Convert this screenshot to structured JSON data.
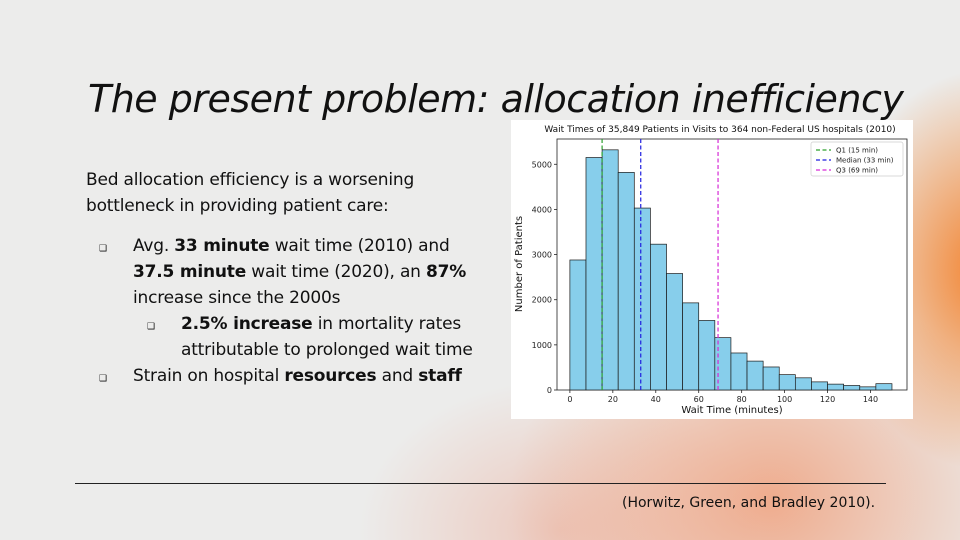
{
  "slide": {
    "title": "The present problem: allocation inefficiency",
    "intro": "Bed allocation efficiency is a worsening bottleneck in providing patient care:",
    "bullet1": {
      "p1": "Avg. ",
      "b1": "33 minute",
      "p2": " wait time (2010) and ",
      "b2": "37.5 minute",
      "p3": " wait time (2020), an ",
      "b3": "87%",
      "p4": " increase since the 2000s"
    },
    "bullet1_sub": {
      "b1": "2.5% increase",
      "p1": " in mortality rates attributable to prolonged wait time"
    },
    "bullet2": {
      "p1": "Strain on hospital ",
      "b1": "resources",
      "p2": " and ",
      "b2": "staff"
    },
    "citation": "(Horwitz, Green, and Bradley 2010).",
    "bullet_marker": "❑"
  },
  "chart_data": {
    "type": "histogram",
    "title": "Wait Times of 35,849 Patients in Visits to 364 non-Federal US hospitals (2010)",
    "xlabel": "Wait Time (minutes)",
    "ylabel": "Number of Patients",
    "bin_width": 7.5,
    "bin_start": 0,
    "values": [
      2880,
      5150,
      5320,
      4820,
      4030,
      3230,
      2580,
      1930,
      1540,
      1160,
      820,
      640,
      510,
      340,
      270,
      180,
      130,
      100,
      70,
      140
    ],
    "xlim": [
      -6,
      157
    ],
    "ylim": [
      0,
      5560
    ],
    "xticks": [
      0,
      20,
      40,
      60,
      80,
      100,
      120,
      140
    ],
    "yticks": [
      0,
      1000,
      2000,
      3000,
      4000,
      5000
    ],
    "bar_color": "#87ceeb",
    "lines": [
      {
        "x": 15,
        "label": "Q1 (15 min)",
        "color": "#2ca02c"
      },
      {
        "x": 33,
        "label": "Median (33 min)",
        "color": "#1f1fdf"
      },
      {
        "x": 69,
        "label": "Q3 (69 min)",
        "color": "#d62ad6"
      }
    ],
    "legend": "top-right",
    "grid": false
  }
}
